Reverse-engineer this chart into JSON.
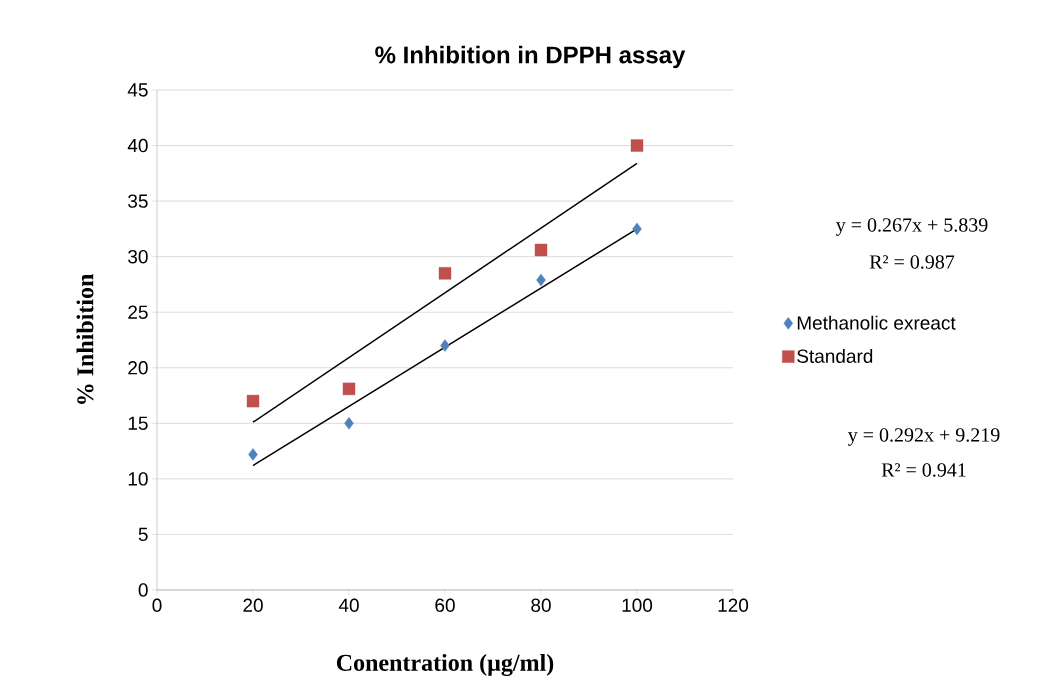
{
  "chart_data": {
    "type": "scatter",
    "title": "% Inhibition in DPPH assay",
    "xlabel": "Conentration (µg/ml)",
    "ylabel": "% Inhibition",
    "series": [
      {
        "name": "Methanolic exreact",
        "color": "#4f81bd",
        "marker": "diamond",
        "x": [
          20,
          40,
          60,
          80,
          100
        ],
        "values": [
          12.2,
          15,
          22,
          27.9,
          32.5
        ]
      },
      {
        "name": "Standard",
        "color": "#c0504d",
        "marker": "square",
        "x": [
          20,
          40,
          60,
          80,
          100
        ],
        "values": [
          17,
          18.1,
          28.5,
          30.6,
          40
        ]
      },
      {
        "type": "line",
        "color": "#000000",
        "x": [
          20,
          100
        ],
        "values": [
          11.2,
          32.5
        ]
      },
      {
        "type": "line",
        "color": "#000000",
        "x": [
          20,
          100
        ],
        "values": [
          15.1,
          38.4
        ]
      }
    ],
    "annotations": [
      "y = 0.267x + 5.839",
      "R² = 0.987",
      "y = 0.292x + 9.219",
      "R² = 0.941"
    ],
    "xlim": [
      0,
      120
    ],
    "xticks": [
      0,
      20,
      40,
      60,
      80,
      100,
      120
    ],
    "ylim": [
      0,
      45
    ],
    "yticks": [
      0,
      5,
      10,
      15,
      20,
      25,
      30,
      35,
      40,
      45
    ],
    "grid": "y",
    "legend": "right"
  }
}
